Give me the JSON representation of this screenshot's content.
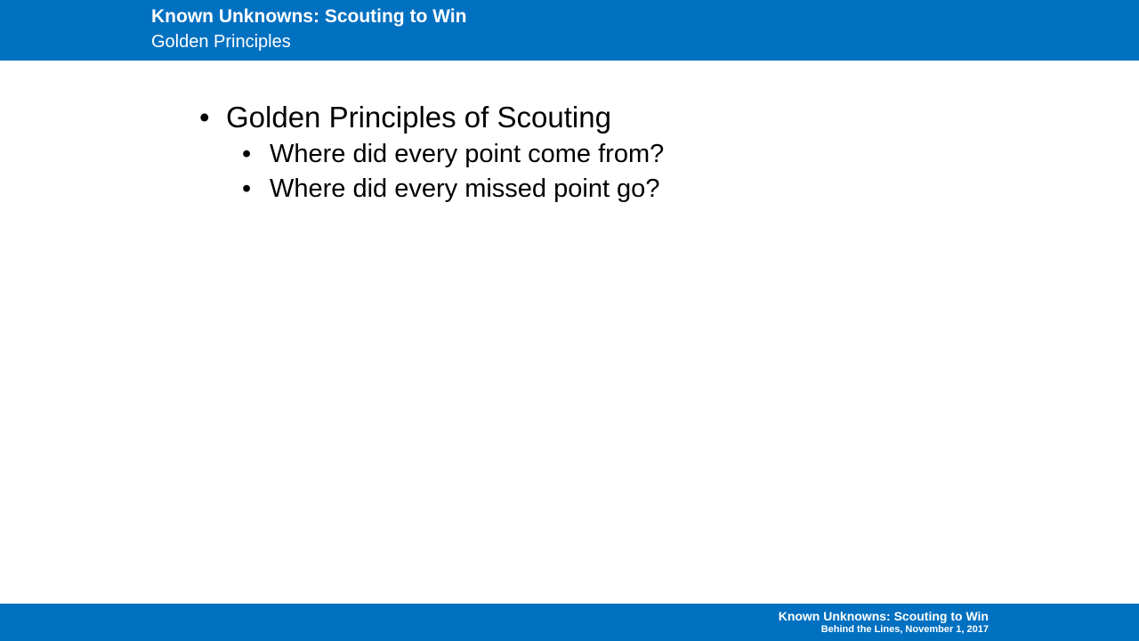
{
  "header": {
    "title": "Known Unknowns: Scouting to Win",
    "subtitle": "Golden Principles"
  },
  "content": {
    "bullet_symbol": "•",
    "main_bullet": "Golden Principles of Scouting",
    "sub_bullets": [
      "Where did every point come from?",
      "Where did every missed point go?"
    ]
  },
  "footer": {
    "title": "Known Unknowns: Scouting to Win",
    "subtitle": "Behind the Lines, November 1, 2017"
  },
  "colors": {
    "brand_blue": "#0070c0",
    "background": "#ffffff",
    "text": "#000000"
  }
}
